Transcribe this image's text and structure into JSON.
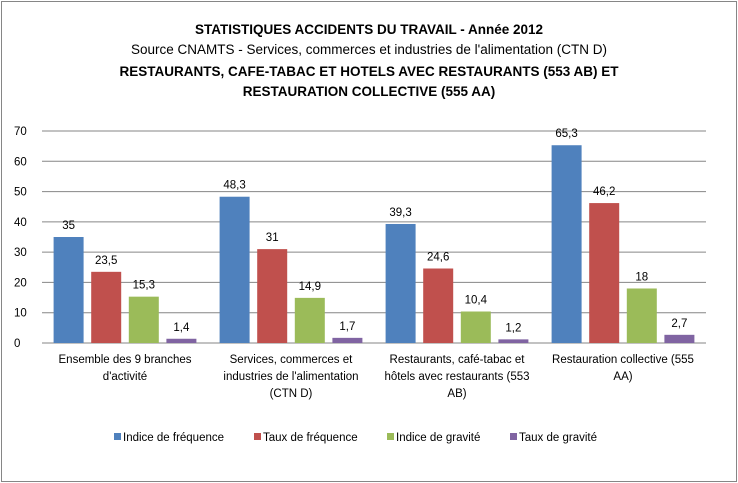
{
  "chart_data": {
    "type": "bar",
    "title": "STATISTIQUES ACCIDENTS DU TRAVAIL - Année 2012",
    "subtitle": "Source CNAMTS - Services, commerces et industries de l'alimentation (CTN D)",
    "subtitle2": "RESTAURANTS, CAFE-TABAC ET HOTELS AVEC RESTAURANTS (553 AB) ET RESTAURATION COLLECTIVE  (555 AA)",
    "categories": [
      [
        "Ensemble des 9 branches",
        "d'activité"
      ],
      [
        "Services, commerces et",
        "industries de l'alimentation",
        "(CTN D)"
      ],
      [
        "Restaurants, café-tabac et",
        "hôtels avec restaurants (553",
        "AB)"
      ],
      [
        "Restauration collective (555",
        "AA)"
      ]
    ],
    "series": [
      {
        "name": "Indice de fréquence",
        "color": "#4F81BD",
        "values": [
          35,
          48.3,
          39.3,
          65.3
        ],
        "labels": [
          "35",
          "48,3",
          "39,3",
          "65,3"
        ]
      },
      {
        "name": "Taux de fréquence",
        "color": "#C0504D",
        "values": [
          23.5,
          31,
          24.6,
          46.2
        ],
        "labels": [
          "23,5",
          "31",
          "24,6",
          "46,2"
        ]
      },
      {
        "name": "Indice de gravité",
        "color": "#9BBB59",
        "values": [
          15.3,
          14.9,
          10.4,
          18
        ],
        "labels": [
          "15,3",
          "14,9",
          "10,4",
          "18"
        ]
      },
      {
        "name": "Taux de gravité",
        "color": "#8064A2",
        "values": [
          1.4,
          1.7,
          1.2,
          2.7
        ],
        "labels": [
          "1,4",
          "1,7",
          "1,2",
          "2,7"
        ]
      }
    ],
    "yticks": [
      "0",
      "10",
      "20",
      "30",
      "40",
      "50",
      "60",
      "70"
    ],
    "ylim": [
      0,
      70
    ],
    "grid": true,
    "legend": "bottom",
    "xlabel": "",
    "ylabel": ""
  }
}
